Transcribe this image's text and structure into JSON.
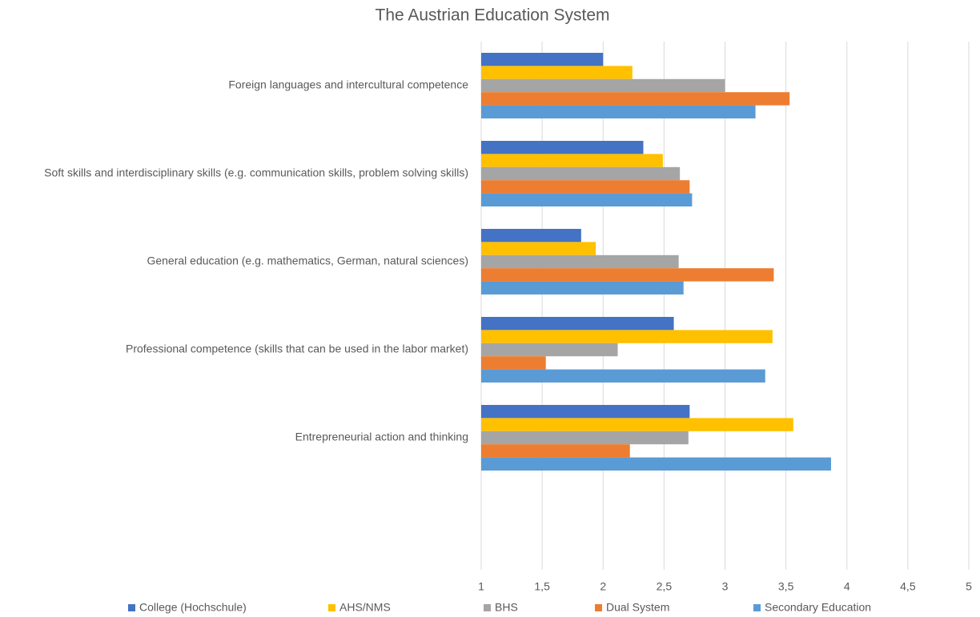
{
  "chart_data": {
    "type": "hbar",
    "title": "The Austrian Education System",
    "categories": [
      "Foreign languages and intercultural competence",
      "Soft skills and interdisciplinary skills (e.g. communication skills, problem solving skills)",
      "General education (e.g. mathematics, German, natural sciences)",
      "Professional competence (skills that can be used in the labor market)",
      "Entrepreneurial action and thinking",
      null
    ],
    "series": [
      {
        "name": "College (Hochschule)",
        "color": "#4472c4",
        "values": [
          2.0,
          2.33,
          1.82,
          2.58,
          2.71,
          null
        ]
      },
      {
        "name": "AHS/NMS",
        "color": "#ffc000",
        "values": [
          2.24,
          2.49,
          1.94,
          3.39,
          3.56,
          null
        ]
      },
      {
        "name": "BHS",
        "color": "#a5a5a5",
        "values": [
          3.0,
          2.63,
          2.62,
          2.12,
          2.7,
          null
        ]
      },
      {
        "name": "Dual System",
        "color": "#ed7d31",
        "values": [
          3.53,
          2.71,
          3.4,
          1.53,
          2.22,
          null
        ]
      },
      {
        "name": "Secondary Education",
        "color": "#5b9bd5",
        "values": [
          3.25,
          2.73,
          2.66,
          3.33,
          3.87,
          null
        ]
      }
    ],
    "xlim": [
      1,
      5
    ],
    "xticks": [
      1,
      {
        "value": 1.5,
        "label": "1,5"
      },
      2,
      {
        "value": 2.5,
        "label": "2,5"
      },
      3,
      {
        "value": 3.5,
        "label": "3,5"
      },
      4,
      {
        "value": 4.5,
        "label": "4,5"
      },
      5
    ],
    "grid": true,
    "legend": "bottom"
  }
}
